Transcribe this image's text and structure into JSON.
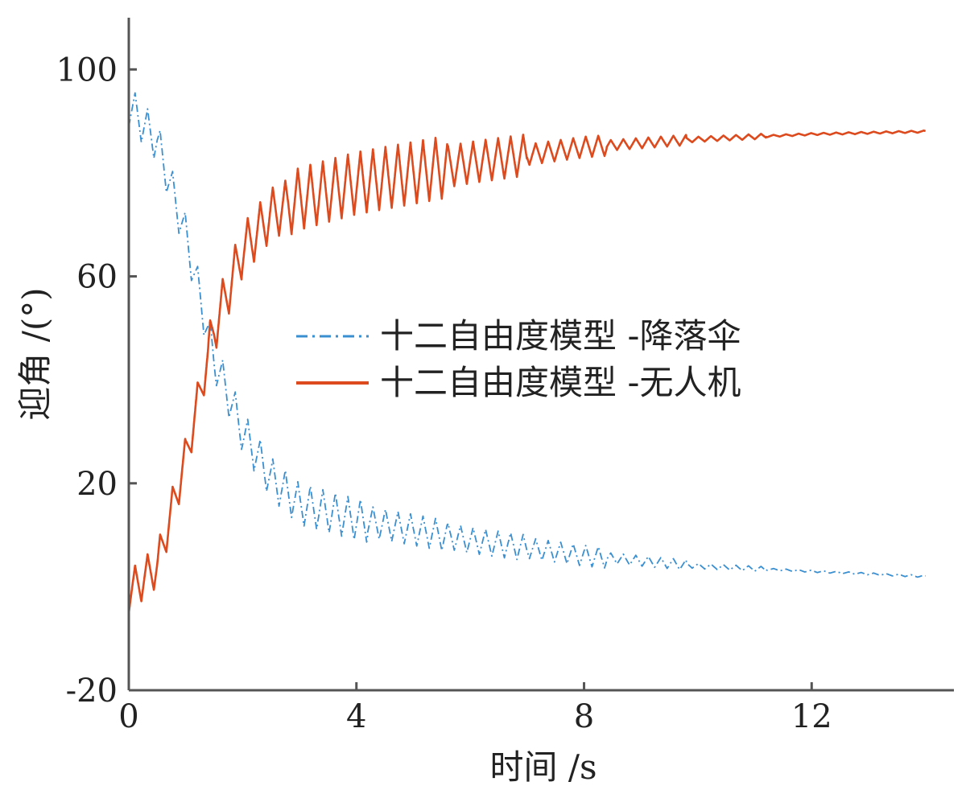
{
  "chart_data": {
    "type": "line",
    "xlabel": "时间 /s",
    "ylabel": "迎角 /(°)",
    "xlim": [
      0,
      14.5
    ],
    "ylim": [
      -20,
      110
    ],
    "xticks": [
      {
        "v": 0,
        "label": "0"
      },
      {
        "v": 4,
        "label": "4"
      },
      {
        "v": 8,
        "label": "8"
      },
      {
        "v": 12,
        "label": "12"
      }
    ],
    "yticks": [
      {
        "v": -20,
        "label": "-20"
      },
      {
        "v": 20,
        "label": "20"
      },
      {
        "v": 60,
        "label": "60"
      },
      {
        "v": 100,
        "label": "100"
      }
    ],
    "grid": false,
    "legend_position": "center-right",
    "series": [
      {
        "name": "十二自由度模型 -降落伞",
        "color": "#3a8fd0",
        "style": "dashdot",
        "oscillation_amplitude": [
          4,
          4,
          4,
          3,
          2.5,
          2,
          1,
          0.5,
          0.2,
          0.2
        ],
        "x": [
          0,
          0.5,
          1.0,
          1.5,
          2.0,
          2.5,
          3.0,
          4.0,
          6.0,
          8.0,
          10.0,
          12.0,
          14.0
        ],
        "y": [
          93,
          86,
          68,
          44,
          30,
          21,
          16,
          13,
          9,
          6,
          4,
          3,
          2
        ]
      },
      {
        "name": "十二自由度模型 -无人机",
        "color": "#dc4a1e",
        "style": "solid",
        "oscillation_amplitude": [
          4,
          5,
          6,
          6,
          4,
          2,
          1,
          0.5,
          0.2,
          0.2
        ],
        "x": [
          0,
          0.5,
          1.0,
          1.5,
          2.0,
          2.5,
          3.0,
          4.0,
          6.0,
          8.0,
          10.0,
          12.0,
          14.0
        ],
        "y": [
          -1,
          4,
          25,
          50,
          65,
          72,
          75,
          78,
          82,
          85,
          86.5,
          87.5,
          88
        ]
      }
    ]
  }
}
